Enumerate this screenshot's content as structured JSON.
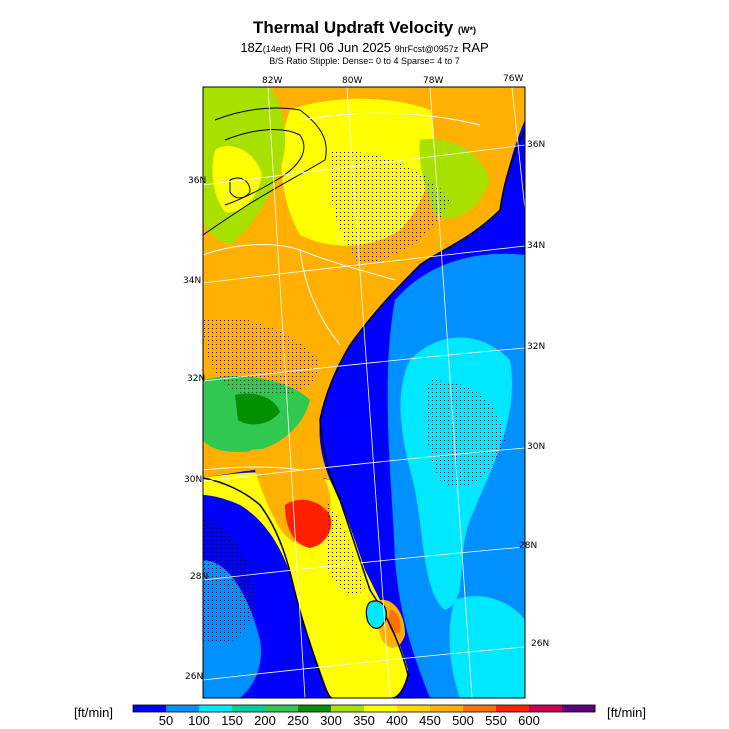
{
  "header": {
    "title": "Thermal Updraft Velocity",
    "title_unit": "(W*)",
    "subtitle_valid": "18Z",
    "subtitle_local": "(14edt)",
    "subtitle_date": "FRI 06 Jun 2025",
    "subtitle_fcst": "9hrFcst@0957z",
    "subtitle_model": "RAP",
    "stipple_note": "B/S Ratio Stipple:  Dense= 0 to 4  Sparse= 4 to 7"
  },
  "map": {
    "lon_labels": [
      "82W",
      "80W",
      "78W",
      "76W"
    ],
    "lat_labels_left": [
      "36N",
      "34N",
      "32N",
      "30N",
      "28N",
      "26N"
    ],
    "lat_labels_right": [
      "36N",
      "34N",
      "32N",
      "30N",
      "28N",
      "26N"
    ],
    "colors": {
      "ocean_deep": "#0000ff",
      "ocean_mid": "#0090ff",
      "ocean_light": "#00e8ff",
      "land_green": "#30c850",
      "land_yellowgreen": "#a8e000",
      "land_yellow": "#ffff00",
      "land_orange": "#ffb000",
      "land_red": "#ff2000"
    }
  },
  "colorbar": {
    "unit_left": "[ft/min]",
    "unit_right": "[ft/min]",
    "ticks": [
      "50",
      "100",
      "150",
      "200",
      "250",
      "300",
      "350",
      "400",
      "450",
      "500",
      "550",
      "600"
    ],
    "colors": [
      "#0000ff",
      "#0090ff",
      "#00e8ff",
      "#00d0a0",
      "#30c850",
      "#009000",
      "#a8e000",
      "#ffff00",
      "#ffd800",
      "#ffb000",
      "#ff7000",
      "#ff2000",
      "#d00050",
      "#600080"
    ]
  }
}
